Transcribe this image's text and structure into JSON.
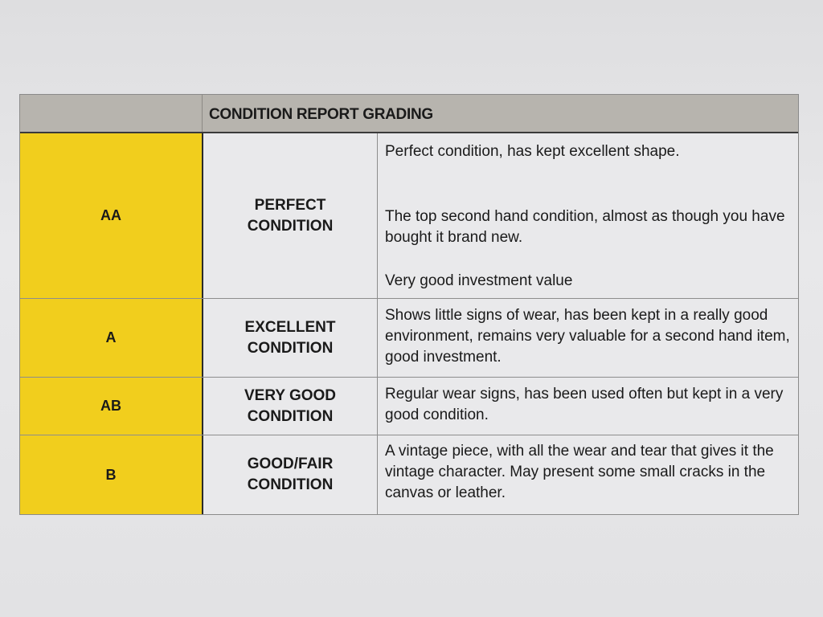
{
  "table": {
    "title": "CONDITION REPORT GRADING",
    "grade_color": "#f1ce1d",
    "rows": [
      {
        "grade": "AA",
        "condition": "PERFECT CONDITION",
        "descriptions": [
          "Perfect condition, has kept excellent shape.",
          "The top second hand condition, almost as though you have bought it brand new.",
          "Very good investment value"
        ]
      },
      {
        "grade": "A",
        "condition": "EXCELLENT CONDITION",
        "descriptions": [
          "Shows little signs of wear, has been kept in a really good environment, remains very valuable for a second hand item, good investment."
        ]
      },
      {
        "grade": "AB",
        "condition": "VERY GOOD CONDITION",
        "descriptions": [
          "Regular wear signs, has been used often but kept in a very good condition."
        ]
      },
      {
        "grade": "B",
        "condition": "GOOD/FAIR CONDITION",
        "descriptions": [
          "A vintage piece, with all the wear and tear that gives it the vintage character. May present some small cracks in the canvas or leather."
        ]
      }
    ]
  }
}
